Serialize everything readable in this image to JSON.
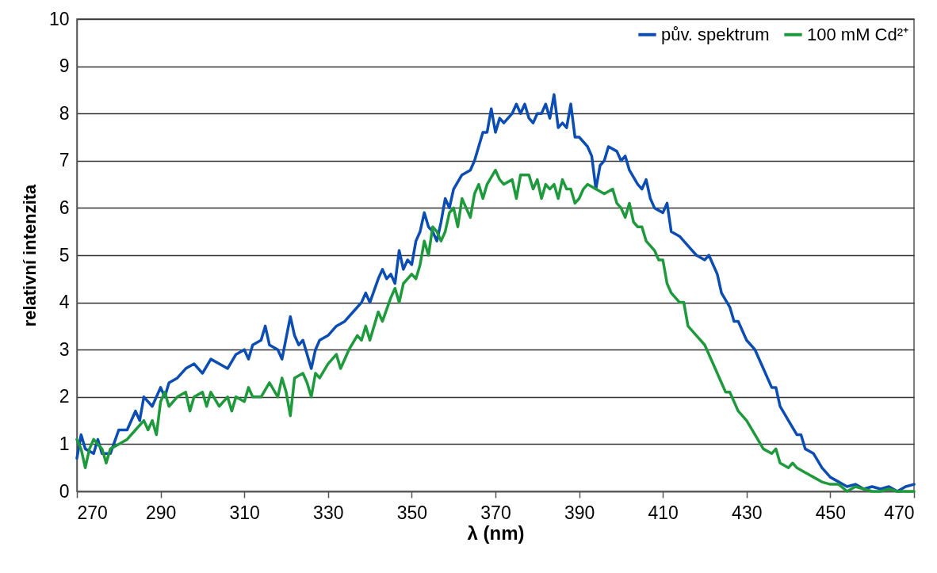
{
  "chart_data": {
    "type": "line",
    "xlabel": "λ (nm)",
    "ylabel": "relativní intenzita",
    "xlim": [
      270,
      470
    ],
    "xticks": [
      270,
      290,
      310,
      330,
      350,
      370,
      390,
      410,
      430,
      450,
      470
    ],
    "ylim": [
      0,
      10
    ],
    "yticks": [
      0,
      1,
      2,
      3,
      4,
      5,
      6,
      7,
      8,
      9,
      10
    ],
    "grid": "y",
    "legend": "top right",
    "line_style": "solid",
    "marker": "none",
    "series": [
      {
        "name": "pův. spektrum",
        "color": "#0b4db3",
        "x": [
          270,
          271,
          272,
          274,
          275,
          276,
          278,
          280,
          282,
          284,
          285,
          286,
          288,
          290,
          291,
          292,
          294,
          296,
          298,
          300,
          302,
          304,
          306,
          308,
          310,
          311,
          312,
          314,
          315,
          316,
          318,
          319,
          321,
          322,
          323,
          324,
          326,
          327,
          328,
          330,
          332,
          334,
          336,
          338,
          339,
          340,
          342,
          343,
          344,
          345,
          346,
          347,
          348,
          349,
          350,
          351,
          352,
          353,
          354,
          355,
          356,
          357,
          358,
          359,
          360,
          362,
          364,
          365,
          367,
          368,
          369,
          370,
          371,
          372,
          374,
          375,
          376,
          377,
          378,
          379,
          380,
          381,
          382,
          383,
          384,
          385,
          386,
          387,
          388,
          389,
          390,
          392,
          393,
          394,
          395,
          396,
          397,
          399,
          400,
          401,
          402,
          404,
          405,
          406,
          407,
          408,
          410,
          411,
          412,
          414,
          416,
          418,
          420,
          421,
          422,
          423,
          424,
          426,
          427,
          428,
          430,
          432,
          434,
          436,
          437,
          438,
          440,
          442,
          443,
          444,
          446,
          448,
          450,
          452,
          454,
          456,
          458,
          460,
          462,
          464,
          466,
          468,
          470
        ],
        "values": [
          0.7,
          1.2,
          0.9,
          0.8,
          1.1,
          0.8,
          0.8,
          1.3,
          1.3,
          1.7,
          1.5,
          2.0,
          1.8,
          2.2,
          2.0,
          2.3,
          2.4,
          2.6,
          2.7,
          2.5,
          2.8,
          2.7,
          2.6,
          2.9,
          3.0,
          2.8,
          3.1,
          3.2,
          3.5,
          3.1,
          3.0,
          2.8,
          3.7,
          3.3,
          3.1,
          3.2,
          2.6,
          3.0,
          3.2,
          3.3,
          3.5,
          3.6,
          3.8,
          4.0,
          4.2,
          4.0,
          4.5,
          4.7,
          4.5,
          4.6,
          4.4,
          5.1,
          4.7,
          4.9,
          4.8,
          5.3,
          5.5,
          5.9,
          5.6,
          5.5,
          5.3,
          5.7,
          6.2,
          6.0,
          6.4,
          6.7,
          6.8,
          7.0,
          7.6,
          7.6,
          8.1,
          7.6,
          7.9,
          7.8,
          8.0,
          8.2,
          8.0,
          8.2,
          7.9,
          7.8,
          8.0,
          8.0,
          8.2,
          7.9,
          8.4,
          7.7,
          7.8,
          7.7,
          8.2,
          7.5,
          7.5,
          7.3,
          7.1,
          6.4,
          6.9,
          7.0,
          7.3,
          7.2,
          7.0,
          7.1,
          6.8,
          6.5,
          6.4,
          6.6,
          6.2,
          6.0,
          5.9,
          6.1,
          5.5,
          5.4,
          5.2,
          5.0,
          4.9,
          5.0,
          4.8,
          4.6,
          4.2,
          3.9,
          3.6,
          3.6,
          3.2,
          3.0,
          2.6,
          2.2,
          2.2,
          1.8,
          1.5,
          1.2,
          1.2,
          0.9,
          0.8,
          0.5,
          0.3,
          0.2,
          0.1,
          0.15,
          0.05,
          0.1,
          0.05,
          0.1,
          0.0,
          0.1,
          0.15
        ]
      },
      {
        "name": "100 mM Cd²⁺",
        "color": "#1e9a3c",
        "x": [
          270,
          271,
          272,
          273,
          274,
          276,
          277,
          278,
          280,
          282,
          284,
          286,
          287,
          288,
          289,
          290,
          291,
          292,
          294,
          296,
          297,
          298,
          300,
          301,
          302,
          304,
          306,
          307,
          308,
          310,
          311,
          312,
          314,
          316,
          318,
          319,
          320,
          321,
          322,
          324,
          325,
          326,
          327,
          328,
          330,
          332,
          333,
          335,
          337,
          338,
          339,
          340,
          342,
          343,
          345,
          346,
          347,
          348,
          350,
          351,
          352,
          353,
          354,
          355,
          356,
          357,
          358,
          359,
          360,
          361,
          362,
          363,
          364,
          365,
          366,
          367,
          368,
          370,
          371,
          372,
          374,
          375,
          376,
          378,
          379,
          380,
          381,
          382,
          383,
          384,
          385,
          386,
          387,
          388,
          389,
          390,
          391,
          392,
          394,
          396,
          398,
          399,
          400,
          401,
          402,
          403,
          404,
          405,
          406,
          408,
          409,
          410,
          411,
          412,
          414,
          415,
          416,
          418,
          420,
          422,
          424,
          425,
          426,
          428,
          430,
          432,
          434,
          436,
          437,
          438,
          440,
          441,
          442,
          444,
          446,
          448,
          450,
          452,
          454,
          456,
          458,
          460,
          462,
          464,
          466,
          468,
          470
        ],
        "values": [
          1.1,
          0.9,
          0.5,
          0.9,
          1.1,
          0.9,
          0.6,
          0.9,
          1.0,
          1.1,
          1.3,
          1.5,
          1.3,
          1.5,
          1.2,
          1.9,
          2.1,
          1.8,
          2.0,
          2.1,
          1.7,
          2.0,
          2.1,
          1.8,
          2.1,
          1.8,
          2.0,
          1.7,
          2.0,
          1.9,
          2.2,
          2.0,
          2.0,
          2.3,
          2.0,
          2.4,
          2.1,
          1.6,
          2.4,
          2.5,
          2.3,
          2.0,
          2.5,
          2.4,
          2.7,
          2.9,
          2.6,
          3.0,
          3.3,
          3.2,
          3.5,
          3.2,
          3.8,
          3.6,
          4.1,
          4.3,
          4.0,
          4.4,
          4.6,
          4.5,
          4.8,
          5.3,
          5.0,
          5.6,
          5.5,
          5.3,
          5.5,
          5.9,
          6.0,
          5.6,
          6.2,
          6.0,
          5.8,
          6.3,
          6.5,
          6.2,
          6.5,
          6.8,
          6.6,
          6.5,
          6.6,
          6.2,
          6.7,
          6.7,
          6.4,
          6.6,
          6.2,
          6.5,
          6.4,
          6.5,
          6.2,
          6.6,
          6.4,
          6.4,
          6.1,
          6.2,
          6.4,
          6.5,
          6.4,
          6.3,
          6.4,
          6.1,
          6.0,
          5.8,
          6.1,
          5.7,
          5.6,
          5.6,
          5.3,
          5.1,
          4.9,
          4.9,
          4.4,
          4.2,
          4.0,
          4.0,
          3.5,
          3.3,
          3.1,
          2.7,
          2.3,
          2.1,
          2.1,
          1.7,
          1.5,
          1.2,
          0.9,
          0.8,
          0.9,
          0.6,
          0.5,
          0.6,
          0.5,
          0.4,
          0.3,
          0.2,
          0.15,
          0.15,
          0.0,
          0.1,
          0.05,
          0.0,
          0.0,
          0.05,
          0.0,
          0.0,
          0.0
        ]
      }
    ]
  }
}
